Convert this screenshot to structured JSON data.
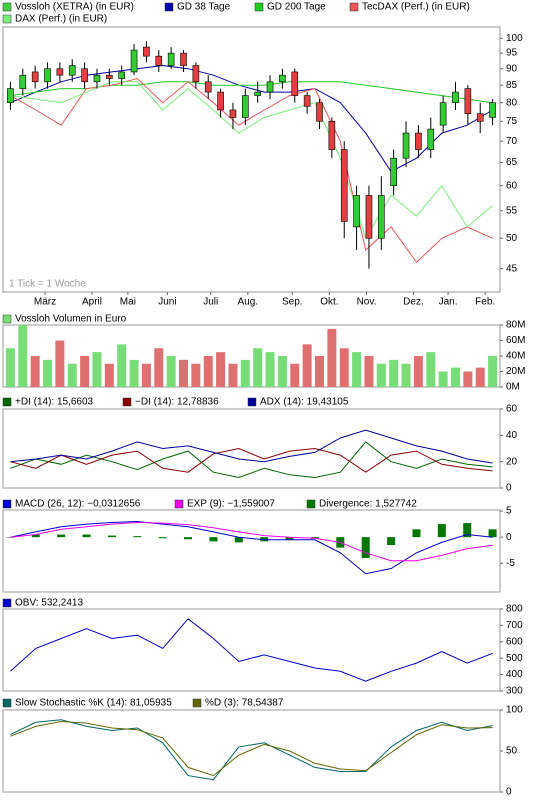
{
  "chart_data": [
    {
      "type": "candlestick",
      "log": true,
      "note": "1 Tick = 1 Woche",
      "xlim": [
        -0.6,
        39.6
      ],
      "xticks": [
        {
          "value": 2.8,
          "label": "März"
        },
        {
          "value": 6.6,
          "label": "April"
        },
        {
          "value": 9.5,
          "label": "Mai"
        },
        {
          "value": 12.7,
          "label": "Juni"
        },
        {
          "value": 16.2,
          "label": "Juli"
        },
        {
          "value": 19.2,
          "label": "Aug."
        },
        {
          "value": 22.8,
          "label": "Sep."
        },
        {
          "value": 25.8,
          "label": "Okt."
        },
        {
          "value": 28.8,
          "label": "Nov."
        },
        {
          "value": 32.6,
          "label": "Dez."
        },
        {
          "value": 35.4,
          "label": "Jan."
        },
        {
          "value": 38.4,
          "label": "Feb."
        }
      ],
      "ylim": [
        41.5,
        104
      ],
      "yticks": [
        45,
        50,
        55,
        60,
        65,
        70,
        75,
        80,
        85,
        90,
        95,
        100
      ],
      "candles": {
        "name": "Vossloh (XETRA) (in EUR)",
        "color": "#44cc44",
        "color_up": "#33cc33",
        "color_down": "#e04040",
        "open": [
          80,
          84,
          89,
          86,
          90,
          88,
          90,
          86,
          88,
          87,
          89,
          97,
          94,
          91,
          95,
          91,
          86,
          83,
          78,
          76,
          82,
          83,
          86,
          89,
          82,
          80,
          75,
          68,
          52,
          58,
          50,
          60,
          66,
          72,
          68,
          74,
          80,
          84,
          77,
          76
        ],
        "high": [
          86,
          90,
          91,
          92,
          92,
          93,
          92,
          90,
          90,
          91,
          98,
          99,
          96,
          97,
          96,
          92,
          88,
          84,
          80,
          84,
          86,
          88,
          90,
          90,
          83,
          81,
          76,
          70,
          60,
          60,
          62,
          68,
          75,
          74,
          76,
          82,
          86,
          85,
          80,
          81
        ],
        "low": [
          78,
          82,
          84,
          84,
          86,
          86,
          84,
          84,
          85,
          85,
          88,
          92,
          89,
          90,
          89,
          84,
          81,
          76,
          73,
          74,
          80,
          81,
          84,
          80,
          77,
          73,
          66,
          50,
          48,
          45,
          48,
          58,
          64,
          66,
          66,
          72,
          78,
          74,
          72,
          74
        ],
        "close": [
          84,
          88,
          86,
          90,
          88,
          91,
          86,
          88,
          87,
          89,
          96,
          94,
          91,
          95,
          91,
          86,
          83,
          78,
          76,
          82,
          83,
          86,
          88,
          82,
          79,
          75,
          68,
          53,
          58,
          50,
          58,
          66,
          72,
          68,
          73,
          80,
          83,
          77,
          75,
          80
        ]
      },
      "series": [
        {
          "name": "GD 38 Tage",
          "color": "#0000aa",
          "values": [
            80,
            83,
            86,
            88,
            89,
            90,
            91,
            90,
            88,
            85,
            83,
            83,
            84,
            80,
            72,
            63,
            66,
            72,
            74,
            78
          ]
        },
        {
          "name": "GD 200 Tage",
          "color": "#22cc22",
          "values": [
            82,
            83,
            84,
            84,
            85,
            85,
            86,
            86,
            85,
            85,
            85,
            86,
            86,
            86,
            85,
            84,
            83,
            82,
            81,
            80
          ]
        },
        {
          "name": "TecDAX (Perf.) (in EUR)",
          "color": "#ee5555",
          "values": [
            82,
            78,
            74,
            84,
            85,
            87,
            80,
            86,
            80,
            74,
            78,
            82,
            84,
            70,
            48,
            52,
            46,
            50,
            52,
            50
          ]
        },
        {
          "name": "DAX (Perf.) (in EUR)",
          "color": "#77ee77",
          "values": [
            82,
            81,
            80,
            83,
            86,
            86,
            78,
            84,
            78,
            72,
            76,
            78,
            80,
            66,
            50,
            58,
            54,
            60,
            52,
            56
          ]
        }
      ]
    },
    {
      "type": "bar",
      "ylim": [
        0,
        80
      ],
      "yticks": [
        {
          "value": 0,
          "label": "0M"
        },
        {
          "value": 20,
          "label": "20M"
        },
        {
          "value": 40,
          "label": "40M"
        },
        {
          "value": 60,
          "label": "60M"
        },
        {
          "value": 80,
          "label": "80M"
        }
      ],
      "series": [
        {
          "name": "Vossloh Volumen in Euro",
          "color": "#77dd77",
          "color_down": "#e07070",
          "values": [
            50,
            80,
            40,
            35,
            60,
            30,
            40,
            45,
            30,
            55,
            35,
            30,
            50,
            40,
            35,
            30,
            40,
            45,
            30,
            35,
            50,
            45,
            40,
            30,
            55,
            40,
            75,
            50,
            45,
            40,
            30,
            35,
            30,
            40,
            45,
            20,
            25,
            20,
            25,
            40
          ]
        }
      ]
    },
    {
      "type": "line",
      "ylim": [
        0,
        60
      ],
      "yticks": [
        0,
        20,
        40,
        60
      ],
      "series": [
        {
          "name": "+DI (14): 15,6603",
          "color": "#006600",
          "values": [
            15,
            22,
            18,
            25,
            20,
            14,
            22,
            28,
            12,
            8,
            15,
            10,
            8,
            12,
            35,
            20,
            15,
            22,
            18,
            16
          ]
        },
        {
          "name": "−DI (14): 12,78836",
          "color": "#880000",
          "values": [
            20,
            15,
            25,
            18,
            25,
            28,
            15,
            12,
            26,
            30,
            22,
            28,
            30,
            25,
            12,
            25,
            28,
            18,
            15,
            13
          ]
        },
        {
          "name": "ADX (14): 19,43105",
          "color": "#000099",
          "values": [
            20,
            22,
            25,
            22,
            28,
            35,
            30,
            32,
            27,
            22,
            20,
            24,
            27,
            38,
            44,
            38,
            32,
            28,
            22,
            19
          ]
        }
      ]
    },
    {
      "type": "line",
      "ylim": [
        -10.5,
        5.2
      ],
      "yticks": [
        -5,
        0,
        5
      ],
      "series": [
        {
          "name": "MACD (26, 12): −0,0312656",
          "color": "#0000cc",
          "values": [
            0,
            1,
            2,
            2.5,
            2.8,
            3,
            2.5,
            2,
            1,
            0,
            -0.5,
            -0.5,
            -0.5,
            -3,
            -7,
            -6,
            -3,
            -1,
            0.5,
            0
          ]
        },
        {
          "name": "EXP (9): −1,559007",
          "color": "#ee00ee",
          "values": [
            0,
            0.5,
            1.5,
            2,
            2.5,
            2.8,
            2.7,
            2.4,
            1.8,
            1,
            0.3,
            0,
            -0.2,
            -1,
            -3,
            -4.5,
            -4.5,
            -3.5,
            -2.2,
            -1.56
          ]
        },
        {
          "name": "Divergence: 1,527742",
          "color": "#007700",
          "kind": "bar",
          "values": [
            0,
            0.5,
            0.5,
            0.5,
            0.3,
            0.2,
            -0.2,
            -0.4,
            -0.8,
            -1,
            -0.8,
            -0.5,
            -0.3,
            -2,
            -4,
            -1.5,
            1.5,
            2.5,
            2.7,
            1.5
          ]
        }
      ]
    },
    {
      "type": "line",
      "ylim": [
        300,
        800
      ],
      "yticks": [
        300,
        400,
        500,
        600,
        700,
        800
      ],
      "series": [
        {
          "name": "OBV: 532,2413",
          "color": "#0000cc",
          "values": [
            420,
            560,
            620,
            680,
            620,
            640,
            560,
            740,
            620,
            480,
            520,
            480,
            440,
            420,
            360,
            420,
            470,
            540,
            470,
            530
          ]
        }
      ]
    },
    {
      "type": "line",
      "ylim": [
        0,
        100
      ],
      "yticks": [
        0,
        50,
        100
      ],
      "series": [
        {
          "name": "Slow Stochastic %K (14): 81,05935",
          "color": "#006666",
          "values": [
            70,
            85,
            88,
            80,
            75,
            78,
            60,
            20,
            15,
            55,
            60,
            45,
            30,
            25,
            25,
            55,
            75,
            85,
            75,
            81
          ]
        },
        {
          "name": "%D (3): 78,54387",
          "color": "#666600",
          "values": [
            68,
            80,
            86,
            84,
            78,
            76,
            66,
            30,
            20,
            45,
            58,
            50,
            35,
            28,
            26,
            48,
            70,
            82,
            78,
            78.5
          ]
        }
      ]
    }
  ]
}
